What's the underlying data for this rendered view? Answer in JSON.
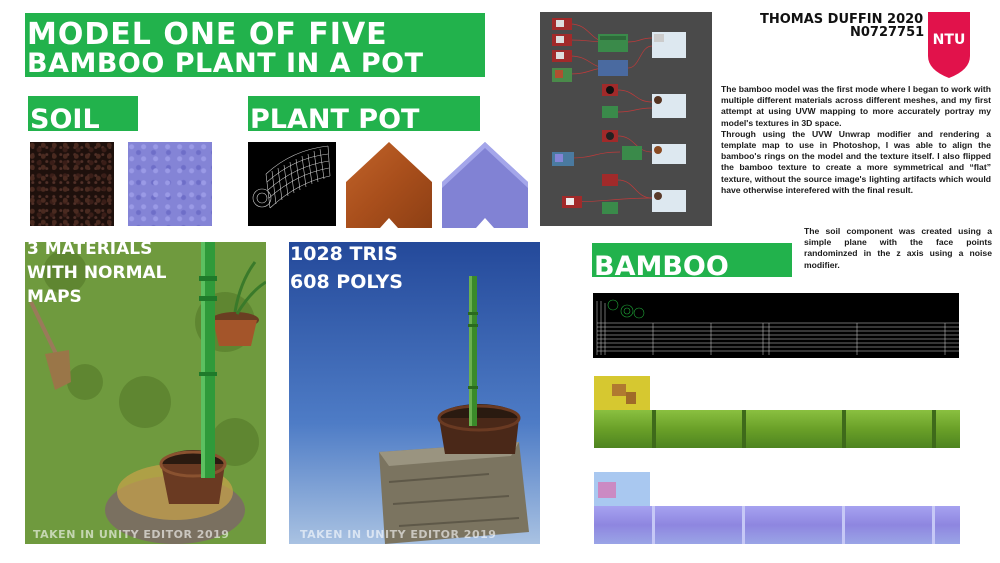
{
  "title": {
    "line1": "MODEL ONE OF FIVE",
    "line2": "BAMBOO PLANT IN A POT"
  },
  "sections": {
    "soil": "SOIL",
    "plant_pot": "PLANT POT",
    "bamboo": "BAMBOO"
  },
  "author": {
    "name": "THOMAS DUFFIN 2020",
    "id": "N0727751",
    "logo": "NTU"
  },
  "description": [
    "The bamboo model was the first mode where I began to work with multiple different materials across different meshes, and my first attempt at using UVW mapping to more accurately portray my model's textures in 3D space.",
    "Through using the UVW Unwrap modifier and rendering a template map to use in Photoshop, I was able to align the bamboo's rings on the model and the texture itself. I also flipped the bamboo texture to create a more symmetrical and “flat” texture, without the source image's lighting artifacts which would have otherwise interefered with the final result."
  ],
  "soil_note": "The soil component was created using a simple plane with the face points randominzed in the z axis using a noise modifier.",
  "renders": {
    "materials_label": [
      "3 MATERIALS",
      "WITH NORMAL",
      "MAPS"
    ],
    "stats_label": [
      "1028 TRIS",
      "608 POLYS"
    ],
    "caption_left": "TAKEN IN UNITY EDITOR 2019",
    "caption_right": "TAKEN IN UNITY EDITOR 2019"
  },
  "colors": {
    "accent_green": "#22b24c",
    "ntu_red": "#e1124b",
    "normal_map": "#8484d6",
    "terracotta": "#b0561f"
  },
  "icons": {
    "logo": "ntu-shield-logo"
  }
}
